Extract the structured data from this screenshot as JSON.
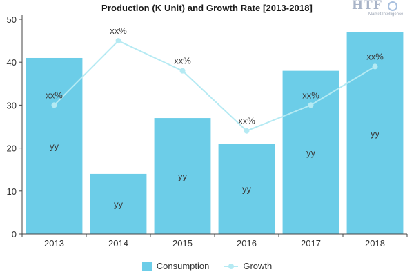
{
  "chart_data": {
    "type": "bar",
    "title": "Production (K Unit) and Growth Rate [2013-2018]",
    "categories": [
      "2013",
      "2014",
      "2015",
      "2016",
      "2017",
      "2018"
    ],
    "series": [
      {
        "name": "Consumption",
        "type": "bar",
        "values": [
          41,
          14,
          27,
          21,
          38,
          47
        ],
        "data_labels": [
          "yy",
          "yy",
          "yy",
          "yy",
          "yy",
          "yy"
        ]
      },
      {
        "name": "Growth",
        "type": "line",
        "values": [
          30,
          45,
          38,
          24,
          30,
          39
        ],
        "data_labels": [
          "xx%",
          "xx%",
          "xx%",
          "xx%",
          "xx%",
          "xx%"
        ]
      }
    ],
    "y_ticks": [
      0,
      10,
      20,
      30,
      40,
      50
    ],
    "ylim": [
      0,
      50
    ],
    "xlabel": "",
    "ylabel": "",
    "legend_position": "bottom",
    "grid": false
  },
  "logo": {
    "text": "HTF",
    "subtext": "Market Intelligence"
  },
  "colors": {
    "bar": "#6ccde8",
    "line": "#b5eaf3",
    "axis": "#444444",
    "text": "#333333"
  }
}
